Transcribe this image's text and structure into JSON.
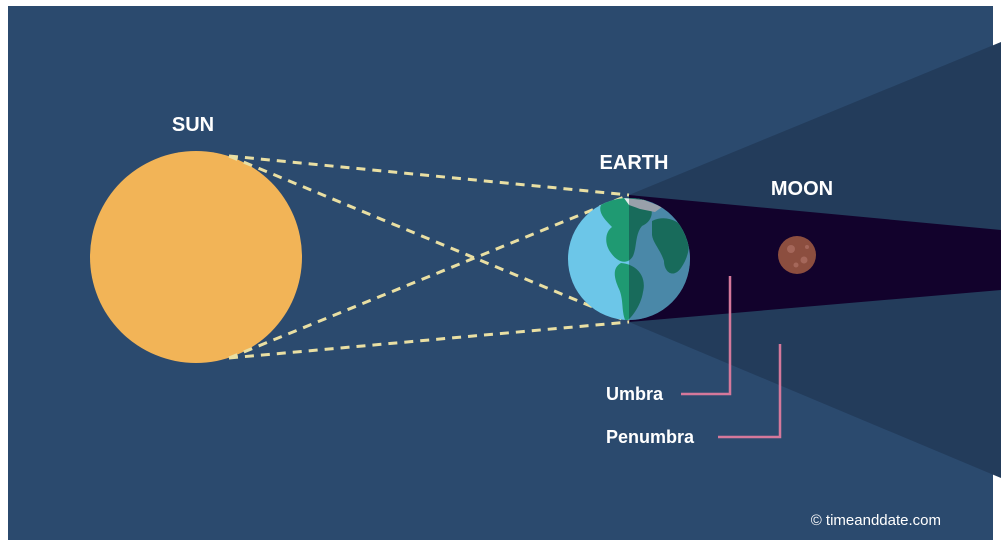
{
  "labels": {
    "sun": "SUN",
    "earth": "EARTH",
    "moon": "MOON",
    "umbra": "Umbra",
    "penumbra": "Penumbra"
  },
  "credit": "© timeanddate.com",
  "colors": {
    "background": "#2b4a6e",
    "sun": "#f2b457",
    "ocean": "#6cc6e8",
    "land": "#1f9a72",
    "penumbra": "#233c5b",
    "umbra": "#12022c",
    "moon": "#8c4e3f",
    "dashed_lines": "#e9dfa3",
    "pointer_lines": "#d5789b"
  },
  "icons": [
    "sun-disc",
    "earth-globe",
    "moon-disc"
  ]
}
